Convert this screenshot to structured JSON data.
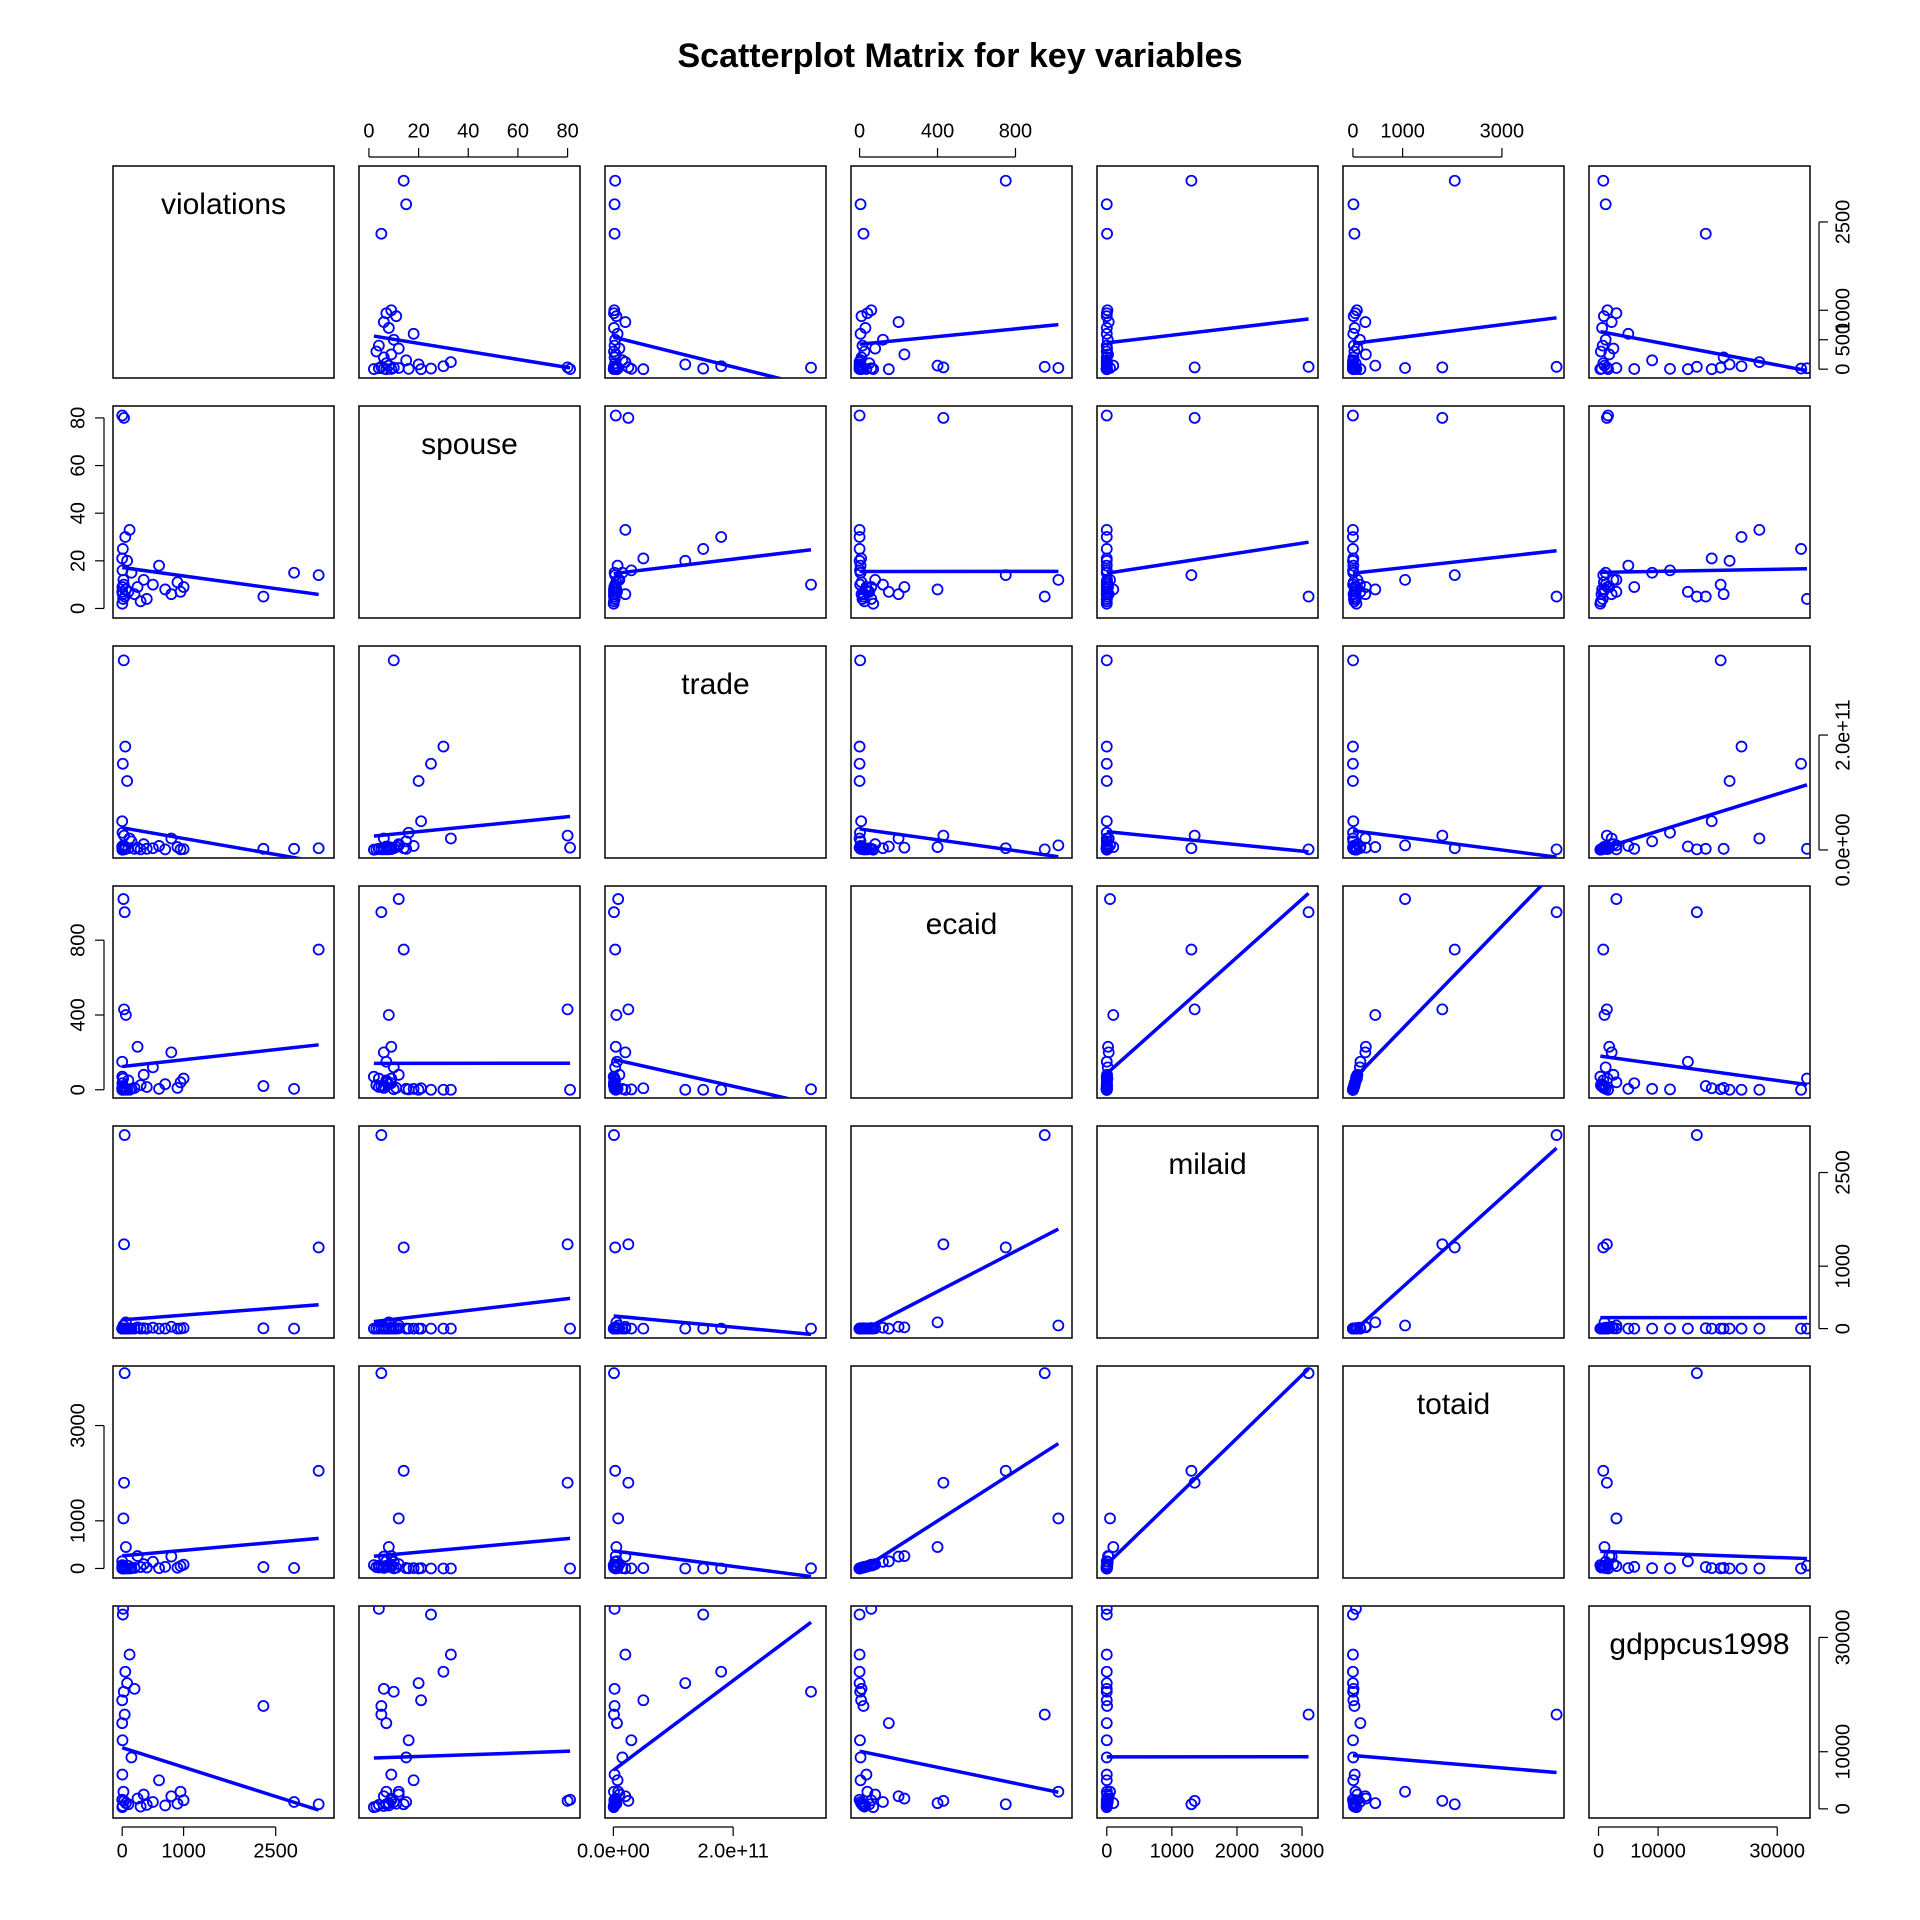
{
  "chart_data": {
    "type": "scatter-matrix",
    "title": "Scatterplot Matrix for key variables",
    "color": "#0000ff",
    "fit_line": true,
    "variables": [
      {
        "name": "violations",
        "values": [
          3200,
          2300,
          1000,
          950,
          900,
          800,
          700,
          600,
          500,
          400,
          350,
          300,
          250,
          200,
          150,
          120,
          100,
          80,
          60,
          50,
          40,
          30,
          25,
          20,
          15,
          10,
          8,
          5,
          3,
          2,
          1,
          2800,
          0,
          0
        ],
        "lim": [
          -150,
          3450
        ],
        "xticks": [
          0,
          1000,
          2500
        ],
        "yticks": [
          0,
          500,
          1000,
          2500
        ]
      },
      {
        "name": "spouse",
        "values": [
          14,
          5,
          9,
          7,
          11,
          6,
          8,
          18,
          10,
          4,
          12,
          3,
          9,
          6,
          15,
          33,
          7,
          20,
          8,
          30,
          5,
          80,
          10,
          12,
          4,
          25,
          6,
          16,
          9,
          2,
          81,
          15,
          7,
          21
        ],
        "lim": [
          -4,
          85
        ],
        "xticks": [
          0,
          20,
          40,
          60,
          80
        ],
        "yticks": [
          0,
          20,
          40,
          60,
          80
        ]
      },
      {
        "name": "trade",
        "values": [
          3000000000,
          2000000000,
          1500000000,
          1000000000,
          5000000000,
          20000000000,
          1000000000,
          7000000000,
          3000000000,
          2000000000,
          10000000000,
          1000000000,
          4000000000,
          2000000000,
          15000000000,
          20000000000,
          3000000000,
          120000000000,
          5000000000,
          180000000000,
          1000000000,
          25000000000,
          330000000000,
          8000000000,
          2000000000,
          150000000000,
          1000000000,
          30000000000,
          2000000000,
          500000000,
          4000000000,
          2000000000,
          6000000000,
          50000000000
        ],
        "lim": [
          -14000000000,
          355000000000
        ],
        "xticks": [
          {
            "value": 0,
            "label": "0.0e+00"
          },
          {
            "value": 200000000000,
            "label": "2.0e+11"
          }
        ],
        "yticks": [
          {
            "value": 0,
            "label": "0.0e+00"
          },
          {
            "value": 200000000000,
            "label": "2.0e+11"
          }
        ]
      },
      {
        "name": "ecaid",
        "values": [
          750,
          20,
          60,
          40,
          10,
          200,
          30,
          5,
          120,
          15,
          80,
          25,
          230,
          10,
          5,
          0,
          50,
          0,
          400,
          0,
          950,
          430,
          3,
          1020,
          60,
          0,
          20,
          2,
          35,
          70,
          0,
          5,
          150,
          8
        ],
        "lim": [
          -44,
          1090
        ],
        "xticks": [
          0,
          400,
          800
        ],
        "yticks": [
          0,
          400,
          800
        ]
      },
      {
        "name": "milaid",
        "values": [
          1300,
          5,
          10,
          2,
          0,
          30,
          1,
          0,
          15,
          0,
          5,
          0,
          20,
          0,
          0,
          0,
          3,
          0,
          100,
          0,
          3100,
          1350,
          0,
          50,
          0,
          0,
          0,
          0,
          0,
          0,
          0,
          0,
          0,
          0
        ],
        "lim": [
          -150,
          3245
        ],
        "xticks": [
          0,
          1000,
          2000,
          3000
        ],
        "yticks": [
          0,
          1000,
          2500
        ]
      },
      {
        "name": "totaid",
        "values": [
          2050,
          30,
          80,
          50,
          15,
          250,
          35,
          8,
          140,
          20,
          90,
          30,
          260,
          12,
          6,
          0,
          55,
          0,
          450,
          0,
          4100,
          1800,
          3,
          1050,
          60,
          0,
          20,
          2,
          35,
          70,
          0,
          10,
          150,
          8
        ],
        "lim": [
          -200,
          4250
        ],
        "xticks": [
          0,
          1000,
          3000
        ],
        "yticks": [
          0,
          1000,
          3000
        ]
      },
      {
        "name": "gdppcus1998",
        "values": [
          800,
          18000,
          1500,
          3000,
          900,
          2200,
          600,
          5000,
          1200,
          700,
          2500,
          400,
          1800,
          21000,
          9000,
          27000,
          800,
          22000,
          1000,
          24000,
          16500,
          1400,
          20500,
          3000,
          35000,
          34000,
          500,
          12000,
          6000,
          300,
          1600,
          1200,
          15000,
          19000
        ],
        "lim": [
          -1600,
          35500
        ],
        "xticks": [
          0,
          10000,
          30000
        ],
        "yticks": [
          0,
          10000,
          30000
        ]
      }
    ]
  }
}
